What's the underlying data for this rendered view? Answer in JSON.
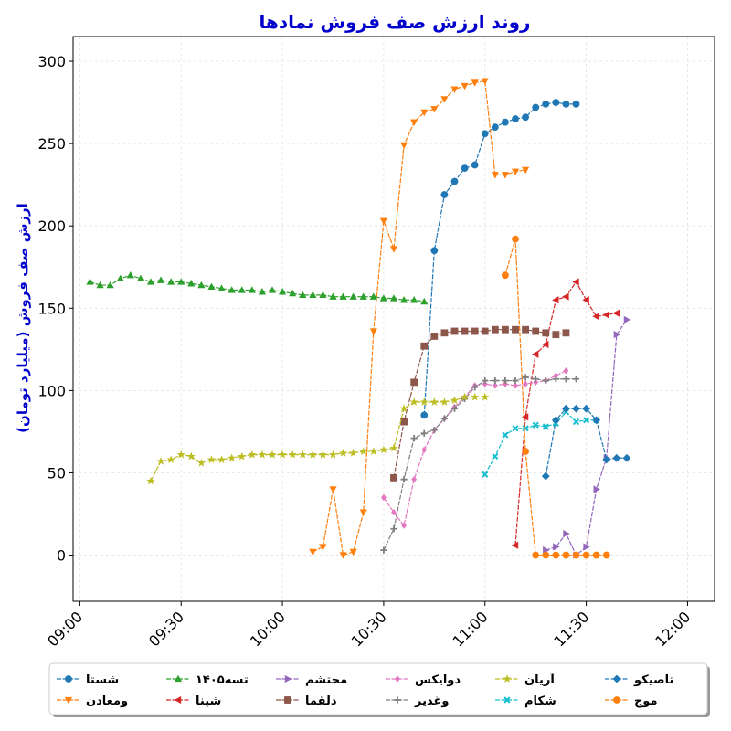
{
  "chart_data": {
    "type": "line",
    "title": "روند ارزش صف فروش نمادها",
    "ylabel": "ارزش صف فروش (میلیارد تومان)",
    "xlabel": "",
    "x_ticks": [
      "09:00",
      "09:30",
      "10:00",
      "10:30",
      "11:00",
      "11:30",
      "12:00"
    ],
    "x_tick_minutes": [
      540,
      570,
      600,
      630,
      660,
      690,
      720
    ],
    "xlim": [
      538,
      728
    ],
    "y_ticks": [
      0,
      50,
      100,
      150,
      200,
      250,
      300
    ],
    "ylim": [
      -28,
      315
    ],
    "grid": true,
    "legend_position": "bottom",
    "legend_columns": 6,
    "series": [
      {
        "name": "شستا",
        "color": "#1f77b4",
        "marker": "circle",
        "x": [
          "10:42",
          "10:45",
          "10:48",
          "10:51",
          "10:54",
          "10:57",
          "11:00",
          "11:03",
          "11:06",
          "11:09",
          "11:12",
          "11:15",
          "11:18",
          "11:21",
          "11:24",
          "11:27",
          "11:30",
          "11:33",
          "11:36",
          "11:39",
          "11:42",
          "11:45",
          "11:48",
          "11:51",
          "11:54",
          "11:57",
          "12:00"
        ],
        "y": [
          85,
          185,
          219,
          227,
          235,
          237,
          256,
          260,
          263,
          265,
          266,
          272,
          274,
          275,
          274,
          274,
          null,
          null,
          null,
          null,
          null,
          null,
          null,
          null,
          null,
          null,
          null
        ]
      },
      {
        "name": "ومعادن",
        "color": "#ff7f0e",
        "marker": "triangle-down",
        "x": [
          "10:09",
          "10:12",
          "10:15",
          "10:18",
          "10:21",
          "10:24",
          "10:27",
          "10:30",
          "10:33",
          "10:36",
          "10:39",
          "10:42",
          "10:45",
          "10:48",
          "10:51",
          "10:54",
          "10:57",
          "11:00",
          "11:03",
          "11:06",
          "11:09",
          "11:12",
          "11:15",
          "11:18",
          "11:21",
          "11:24",
          "11:27"
        ],
        "y": [
          2,
          5,
          40,
          0,
          2,
          26,
          136,
          203,
          186,
          249,
          263,
          269,
          271,
          277,
          283,
          285,
          287,
          288,
          231,
          231,
          233,
          234,
          null,
          null,
          null,
          null,
          null
        ]
      },
      {
        "name": "تسه۱۴۰۵",
        "color": "#2ca02c",
        "marker": "triangle-up",
        "x": [
          "09:03",
          "09:06",
          "09:09",
          "09:12",
          "09:15",
          "09:18",
          "09:21",
          "09:24",
          "09:27",
          "09:30",
          "09:33",
          "09:36",
          "09:39",
          "09:42",
          "09:45",
          "09:48",
          "09:51",
          "09:54",
          "09:57",
          "10:00",
          "10:03",
          "10:06",
          "10:09",
          "10:12",
          "10:15",
          "10:18",
          "10:21",
          "10:24",
          "10:27",
          "10:30",
          "10:33",
          "10:36",
          "10:39",
          "10:42",
          "10:45",
          "10:48",
          "10:51",
          "10:54",
          "10:57",
          "11:00"
        ],
        "y": [
          166,
          164,
          164,
          168,
          170,
          168,
          166,
          167,
          166,
          166,
          165,
          164,
          163,
          162,
          161,
          161,
          161,
          160,
          161,
          160,
          159,
          158,
          158,
          158,
          157,
          157,
          157,
          157,
          157,
          156,
          156,
          155,
          155,
          154,
          null,
          null,
          null,
          null,
          null,
          null
        ]
      },
      {
        "name": "شپنا",
        "color": "#d62728",
        "marker": "triangle-left",
        "x": [
          "11:09",
          "11:12",
          "11:15",
          "11:18",
          "11:21",
          "11:24",
          "11:27",
          "11:30",
          "11:33",
          "11:36",
          "11:39",
          "11:42",
          "11:45",
          "11:48",
          "11:51",
          "11:54",
          "11:57",
          "12:00"
        ],
        "y": [
          6,
          84,
          122,
          128,
          155,
          157,
          166,
          155,
          145,
          146,
          147,
          null,
          null,
          null,
          null,
          null,
          null,
          null
        ]
      },
      {
        "name": "محتشم",
        "color": "#9467bd",
        "marker": "triangle-right",
        "x": [
          "11:18",
          "11:21",
          "11:24",
          "11:27",
          "11:30",
          "11:33",
          "11:36",
          "11:39",
          "11:42",
          "11:45"
        ],
        "y": [
          3,
          5,
          13,
          0,
          5,
          40,
          59,
          134,
          143,
          null
        ]
      },
      {
        "name": "دلقما",
        "color": "#8c564b",
        "marker": "square",
        "x": [
          "10:33",
          "10:36",
          "10:39",
          "10:42",
          "10:45",
          "10:48",
          "10:51",
          "10:54",
          "10:57",
          "11:00",
          "11:03",
          "11:06",
          "11:09",
          "11:12",
          "11:15",
          "11:18",
          "11:21",
          "11:24",
          "11:27",
          "11:30"
        ],
        "y": [
          47,
          81,
          105,
          127,
          133,
          135,
          136,
          136,
          136,
          136,
          137,
          137,
          137,
          137,
          136,
          135,
          134,
          135,
          null,
          null
        ]
      },
      {
        "name": "دوایکس",
        "color": "#e377c2",
        "marker": "diamond",
        "x": [
          "10:30",
          "10:33",
          "10:36",
          "10:39",
          "10:42",
          "10:45",
          "10:48",
          "10:51",
          "10:54",
          "10:57",
          "11:00",
          "11:03",
          "11:06",
          "11:09",
          "11:12",
          "11:15",
          "11:18",
          "11:21",
          "11:24",
          "11:27",
          "11:30",
          "11:33",
          "11:36",
          "11:39"
        ],
        "y": [
          35,
          26,
          18,
          46,
          64,
          76,
          83,
          90,
          96,
          103,
          104,
          103,
          104,
          103,
          104,
          105,
          106,
          109,
          112,
          null,
          null,
          null,
          null,
          null
        ]
      },
      {
        "name": "وغدیر",
        "color": "#7f7f7f",
        "marker": "plus",
        "x": [
          "10:30",
          "10:33",
          "10:36",
          "10:39",
          "10:42",
          "10:45",
          "10:48",
          "10:51",
          "10:54",
          "10:57",
          "11:00",
          "11:03",
          "11:06",
          "11:09",
          "11:12",
          "11:15",
          "11:18",
          "11:21",
          "11:24",
          "11:27",
          "11:30",
          "11:33",
          "11:36",
          "11:39",
          "11:42",
          "11:45"
        ],
        "y": [
          3,
          16,
          46,
          71,
          74,
          76,
          83,
          89,
          95,
          102,
          106,
          106,
          106,
          106,
          108,
          107,
          106,
          107,
          107,
          107,
          null,
          null,
          null,
          null,
          null,
          null
        ]
      },
      {
        "name": "آریان",
        "color": "#bcbd22",
        "marker": "star",
        "x": [
          "09:21",
          "09:24",
          "09:27",
          "09:30",
          "09:33",
          "09:36",
          "09:39",
          "09:42",
          "09:45",
          "09:48",
          "09:51",
          "09:54",
          "09:57",
          "10:00",
          "10:03",
          "10:06",
          "10:09",
          "10:12",
          "10:15",
          "10:18",
          "10:21",
          "10:24",
          "10:27",
          "10:30",
          "10:33",
          "10:36",
          "10:39",
          "10:42",
          "10:45",
          "10:48",
          "10:51",
          "10:54",
          "10:57",
          "11:00",
          "11:03",
          "11:06",
          "11:09",
          "11:12",
          "11:15",
          "11:18",
          "11:21",
          "11:24",
          "11:27",
          "11:30"
        ],
        "y": [
          45,
          57,
          58,
          61,
          60,
          56,
          58,
          58,
          59,
          60,
          61,
          61,
          61,
          61,
          61,
          61,
          61,
          61,
          61,
          62,
          62,
          63,
          63,
          64,
          65,
          89,
          93,
          93,
          93,
          93,
          94,
          96,
          96,
          96,
          null,
          null,
          null,
          null,
          null,
          null,
          null,
          null,
          null,
          null
        ]
      },
      {
        "name": "شکام",
        "color": "#17becf",
        "marker": "x",
        "x": [
          "11:00",
          "11:03",
          "11:06",
          "11:09",
          "11:12",
          "11:15",
          "11:18",
          "11:21",
          "11:24",
          "11:27",
          "11:30",
          "11:33",
          "11:36",
          "11:39",
          "11:42",
          "11:45"
        ],
        "y": [
          49,
          60,
          73,
          77,
          77,
          79,
          78,
          80,
          87,
          81,
          82,
          82,
          null,
          null,
          null,
          null
        ]
      },
      {
        "name": "تاصیکو",
        "color": "#1f77b4",
        "marker": "diamond-filled",
        "x": [
          "11:18",
          "11:21",
          "11:24",
          "11:27",
          "11:30",
          "11:33",
          "11:36",
          "11:39",
          "11:42",
          "11:45",
          "11:48"
        ],
        "y": [
          48,
          82,
          89,
          89,
          89,
          82,
          58,
          59,
          59,
          null,
          null
        ]
      },
      {
        "name": "موج",
        "color": "#ff7f0e",
        "marker": "circle",
        "x": [
          "11:06",
          "11:09",
          "11:12",
          "11:15",
          "11:18",
          "11:21",
          "11:24",
          "11:27",
          "11:30",
          "11:33",
          "11:36",
          "11:39",
          "11:42",
          "11:45"
        ],
        "y": [
          170,
          192,
          63,
          0,
          0,
          0,
          0,
          0,
          0,
          0,
          0,
          null,
          null,
          null
        ]
      }
    ]
  }
}
